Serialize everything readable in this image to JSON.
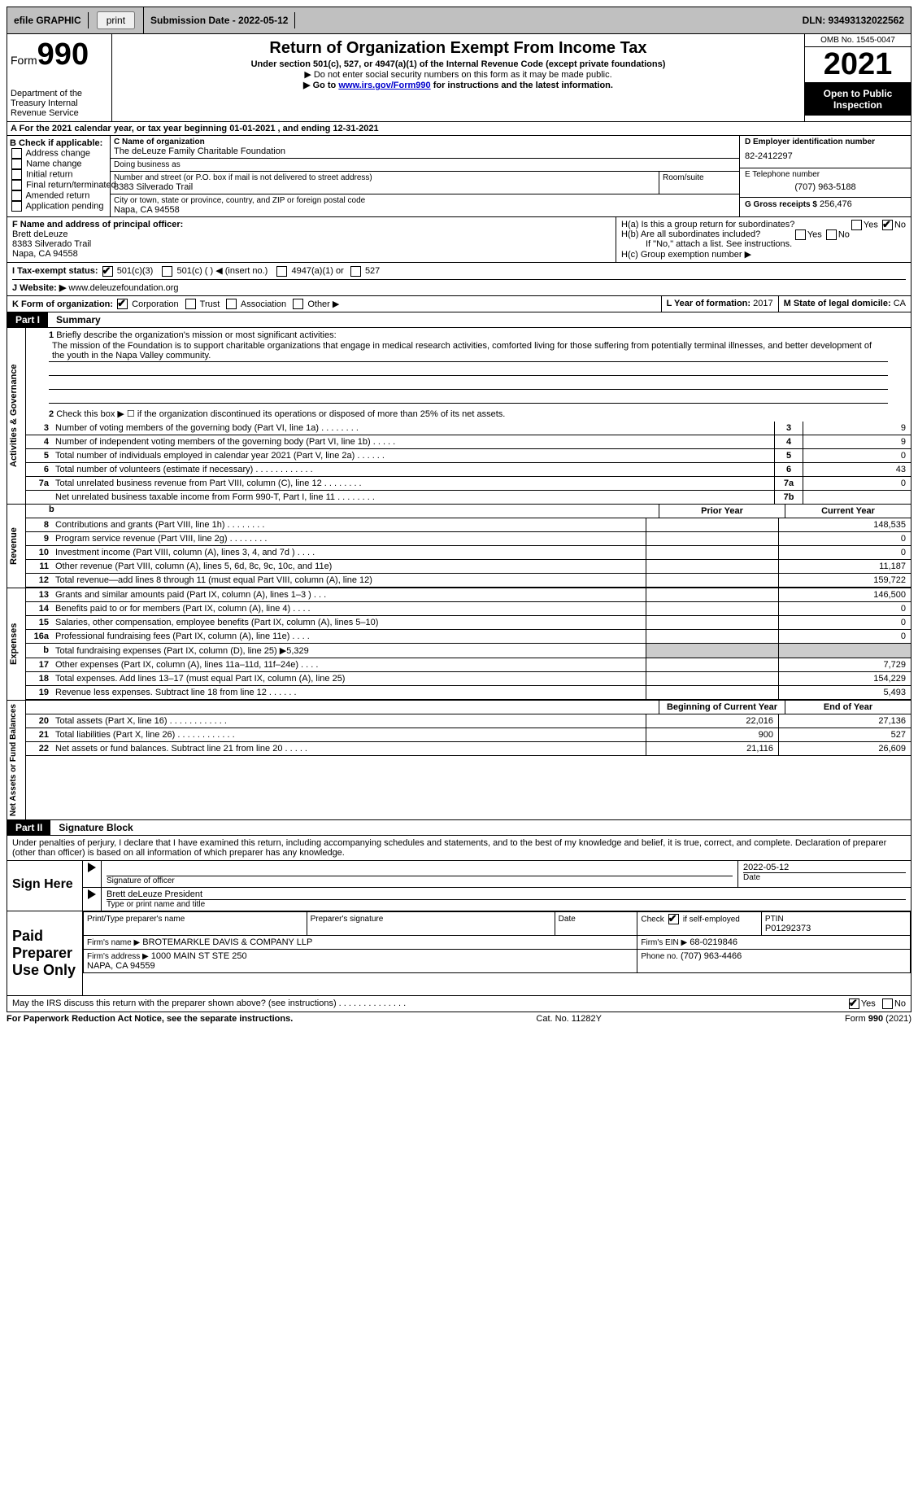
{
  "topbar": {
    "efile_label": "efile GRAPHIC",
    "print_btn": "print",
    "submission_label": "Submission Date - 2022-05-12",
    "dln_label": "DLN: 93493132022562"
  },
  "header": {
    "form_label": "Form",
    "form_number": "990",
    "dept": "Department of the Treasury\nInternal Revenue Service",
    "title": "Return of Organization Exempt From Income Tax",
    "subtitle": "Under section 501(c), 527, or 4947(a)(1) of the Internal Revenue Code (except private foundations)",
    "note1": "▶ Do not enter social security numbers on this form as it may be made public.",
    "note2_pre": "▶ Go to ",
    "note2_link": "www.irs.gov/Form990",
    "note2_post": " for instructions and the latest information.",
    "omb": "OMB No. 1545-0047",
    "year": "2021",
    "inspection": "Open to Public Inspection"
  },
  "row_a": "A For the 2021 calendar year, or tax year beginning 01-01-2021    , and ending 12-31-2021",
  "col_b": {
    "header": "B Check if applicable:",
    "opts": [
      "Address change",
      "Name change",
      "Initial return",
      "Final return/terminated",
      "Amended return",
      "Application pending"
    ]
  },
  "col_c": {
    "name_label": "C Name of organization",
    "name": "The deLeuze Family Charitable Foundation",
    "dba_label": "Doing business as",
    "dba": "",
    "addr_label": "Number and street (or P.O. box if mail is not delivered to street address)",
    "room_label": "Room/suite",
    "addr": "8383 Silverado Trail",
    "city_label": "City or town, state or province, country, and ZIP or foreign postal code",
    "city": "Napa, CA  94558"
  },
  "col_d": {
    "ein_label": "D Employer identification number",
    "ein": "82-2412297",
    "phone_label": "E Telephone number",
    "phone": "(707) 963-5188",
    "gross_label": "G Gross receipts $",
    "gross": "256,476"
  },
  "block_f": {
    "label": "F Name and address of principal officer:",
    "name": "Brett deLeuze",
    "addr1": "8383 Silverado Trail",
    "addr2": "Napa, CA  94558"
  },
  "block_h": {
    "ha": "H(a)  Is this a group return for subordinates?",
    "hb": "H(b)  Are all subordinates included?",
    "hb_note": "If \"No,\" attach a list. See instructions.",
    "hc": "H(c)  Group exemption number ▶",
    "yes": "Yes",
    "no": "No"
  },
  "row_i": {
    "label": "I   Tax-exempt status:",
    "opt1": "501(c)(3)",
    "opt2": "501(c) (  ) ◀ (insert no.)",
    "opt3": "4947(a)(1) or",
    "opt4": "527"
  },
  "row_j": {
    "label": "J   Website: ▶",
    "value": "www.deleuzefoundation.org"
  },
  "row_k": {
    "label": "K Form of organization:",
    "opts": [
      "Corporation",
      "Trust",
      "Association",
      "Other ▶"
    ],
    "l_label": "L Year of formation:",
    "l_val": "2017",
    "m_label": "M State of legal domicile:",
    "m_val": "CA"
  },
  "part1": {
    "header": "Part I",
    "title": "Summary",
    "line1_label": "Briefly describe the organization's mission or most significant activities:",
    "mission": "The mission of the Foundation is to support charitable organizations that engage in medical research activities, comforted living for those suffering from potentially terminal illnesses, and better development of the youth in the Napa Valley community.",
    "line2": "Check this box ▶ ☐ if the organization discontinued its operations or disposed of more than 25% of its net assets.",
    "governance_label": "Activities & Governance",
    "revenue_label": "Revenue",
    "expenses_label": "Expenses",
    "netassets_label": "Net Assets or Fund Balances",
    "lines_gov": [
      {
        "n": "3",
        "d": "Number of voting members of the governing body (Part VI, line 1a)  .  .  .  .  .  .  .  .",
        "b": "3",
        "v": "9"
      },
      {
        "n": "4",
        "d": "Number of independent voting members of the governing body (Part VI, line 1b)  .  .  .  .  .",
        "b": "4",
        "v": "9"
      },
      {
        "n": "5",
        "d": "Total number of individuals employed in calendar year 2021 (Part V, line 2a)  .  .  .  .  .  .",
        "b": "5",
        "v": "0"
      },
      {
        "n": "6",
        "d": "Total number of volunteers (estimate if necessary)   .  .  .  .  .  .  .  .  .  .  .  .",
        "b": "6",
        "v": "43"
      },
      {
        "n": "7a",
        "d": "Total unrelated business revenue from Part VIII, column (C), line 12   .  .  .  .  .  .  .  .",
        "b": "7a",
        "v": "0"
      },
      {
        "n": "",
        "d": "Net unrelated business taxable income from Form 990-T, Part I, line 11  .  .  .  .  .  .  .  .",
        "b": "7b",
        "v": ""
      }
    ],
    "col_prior": "Prior Year",
    "col_current": "Current Year",
    "lines_rev": [
      {
        "n": "8",
        "d": "Contributions and grants (Part VIII, line 1h)   .  .  .  .  .  .  .  .",
        "p": "",
        "c": "148,535"
      },
      {
        "n": "9",
        "d": "Program service revenue (Part VIII, line 2g)  .  .  .  .  .  .  .  .",
        "p": "",
        "c": "0"
      },
      {
        "n": "10",
        "d": "Investment income (Part VIII, column (A), lines 3, 4, and 7d )   .  .  .  .",
        "p": "",
        "c": "0"
      },
      {
        "n": "11",
        "d": "Other revenue (Part VIII, column (A), lines 5, 6d, 8c, 9c, 10c, and 11e)",
        "p": "",
        "c": "11,187"
      },
      {
        "n": "12",
        "d": "Total revenue—add lines 8 through 11 (must equal Part VIII, column (A), line 12)",
        "p": "",
        "c": "159,722"
      }
    ],
    "lines_exp": [
      {
        "n": "13",
        "d": "Grants and similar amounts paid (Part IX, column (A), lines 1–3 )  .  .  .",
        "p": "",
        "c": "146,500"
      },
      {
        "n": "14",
        "d": "Benefits paid to or for members (Part IX, column (A), line 4)  .  .  .  .",
        "p": "",
        "c": "0"
      },
      {
        "n": "15",
        "d": "Salaries, other compensation, employee benefits (Part IX, column (A), lines 5–10)",
        "p": "",
        "c": "0"
      },
      {
        "n": "16a",
        "d": "Professional fundraising fees (Part IX, column (A), line 11e)  .  .  .  .",
        "p": "",
        "c": "0"
      },
      {
        "n": "b",
        "d": "Total fundraising expenses (Part IX, column (D), line 25) ▶5,329",
        "p": "shade",
        "c": "shade"
      },
      {
        "n": "17",
        "d": "Other expenses (Part IX, column (A), lines 11a–11d, 11f–24e)  .  .  .  .",
        "p": "",
        "c": "7,729"
      },
      {
        "n": "18",
        "d": "Total expenses. Add lines 13–17 (must equal Part IX, column (A), line 25)",
        "p": "",
        "c": "154,229"
      },
      {
        "n": "19",
        "d": "Revenue less expenses. Subtract line 18 from line 12  .  .  .  .  .  .",
        "p": "",
        "c": "5,493"
      }
    ],
    "col_begin": "Beginning of Current Year",
    "col_end": "End of Year",
    "lines_net": [
      {
        "n": "20",
        "d": "Total assets (Part X, line 16)  .  .  .  .  .  .  .  .  .  .  .  .",
        "p": "22,016",
        "c": "27,136"
      },
      {
        "n": "21",
        "d": "Total liabilities (Part X, line 26)  .  .  .  .  .  .  .  .  .  .  .  .",
        "p": "900",
        "c": "527"
      },
      {
        "n": "22",
        "d": "Net assets or fund balances. Subtract line 21 from line 20  .  .  .  .  .",
        "p": "21,116",
        "c": "26,609"
      }
    ]
  },
  "part2": {
    "header": "Part II",
    "title": "Signature Block",
    "declaration": "Under penalties of perjury, I declare that I have examined this return, including accompanying schedules and statements, and to the best of my knowledge and belief, it is true, correct, and complete. Declaration of preparer (other than officer) is based on all information of which preparer has any knowledge.",
    "sign_here": "Sign Here",
    "sig_officer": "Signature of officer",
    "sig_date": "2022-05-12",
    "date_label": "Date",
    "officer_name": "Brett deLeuze  President",
    "officer_name_label": "Type or print name and title",
    "paid_label": "Paid Preparer Use Only",
    "prep_name_label": "Print/Type preparer's name",
    "prep_sig_label": "Preparer's signature",
    "check_label": "Check",
    "self_emp": "if self-employed",
    "ptin_label": "PTIN",
    "ptin": "P01292373",
    "firm_name_label": "Firm's name     ▶",
    "firm_name": "BROTEMARKLE DAVIS & COMPANY LLP",
    "firm_ein_label": "Firm's EIN ▶",
    "firm_ein": "68-0219846",
    "firm_addr_label": "Firm's address ▶",
    "firm_addr": "1000 MAIN ST STE 250\nNAPA, CA  94559",
    "firm_phone_label": "Phone no.",
    "firm_phone": "(707) 963-4466",
    "discuss": "May the IRS discuss this return with the preparer shown above? (see instructions)   .  .  .  .  .  .  .  .  .  .  .  .  .  ."
  },
  "footer": {
    "left": "For Paperwork Reduction Act Notice, see the separate instructions.",
    "mid": "Cat. No. 11282Y",
    "right": "Form 990 (2021)"
  }
}
